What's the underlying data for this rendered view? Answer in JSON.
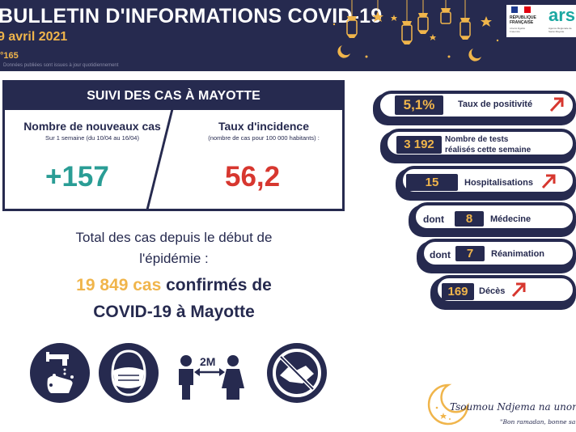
{
  "header": {
    "title": "BULLETIN D'INFORMATIONS COVID-19",
    "date": "9 avril 2021",
    "number": "°165",
    "small_note": "Données publiées sont issues à jour quotidiennement",
    "rf_label": "RÉPUBLIQUE FRANÇAISE",
    "rf_motto": "Liberté Égalité Fraternité",
    "ars_label": "ars",
    "ars_sub": "Agence Régionale de Santé Mayotte"
  },
  "suivi": {
    "title": "SUIVI DES CAS À MAYOTTE",
    "left_heading": "Nombre de nouveaux cas",
    "left_sub": "Sur 1 semaine (du 10/04 au 16/04)",
    "left_value": "+157",
    "right_heading": "Taux d'incidence",
    "right_sub": "(nombre de cas pour 100 000 habitants) :",
    "right_value": "56,2"
  },
  "total": {
    "intro_line1": "Total des cas depuis le début de",
    "intro_line2": "l'épidémie :",
    "cases_count": "19 849 cas",
    "line1_rest": " confirmés de",
    "line2": "COVID-19 à Mayotte"
  },
  "indicators": [
    {
      "value": "5,1%",
      "label": "Taux de positivité",
      "trend": "up"
    },
    {
      "value": "3 192",
      "label_line1": "Nombre de tests",
      "label_line2": "réalisés cette semaine"
    },
    {
      "value": "15",
      "label": "Hospitalisations",
      "trend": "up"
    },
    {
      "prefix": "dont",
      "value": "8",
      "label": "Médecine"
    },
    {
      "prefix": "dont",
      "value": "7",
      "label": "Réanimation"
    },
    {
      "value": "169",
      "label": "Décès",
      "trend": "up"
    }
  ],
  "gestures": [
    {
      "icon": "hand-washing-icon"
    },
    {
      "icon": "face-mask-icon"
    },
    {
      "icon": "social-distance-icon",
      "label": "2M"
    },
    {
      "icon": "no-handshake-icon"
    }
  ],
  "footer": {
    "slogan": "Tsoumou Ndjema na unono",
    "slogan_sub": "\"Bon ramadan, bonne santé\""
  },
  "colors": {
    "navy": "#262a4f",
    "gold": "#f0b54b",
    "teal": "#2a9d95",
    "red": "#d7372f"
  }
}
